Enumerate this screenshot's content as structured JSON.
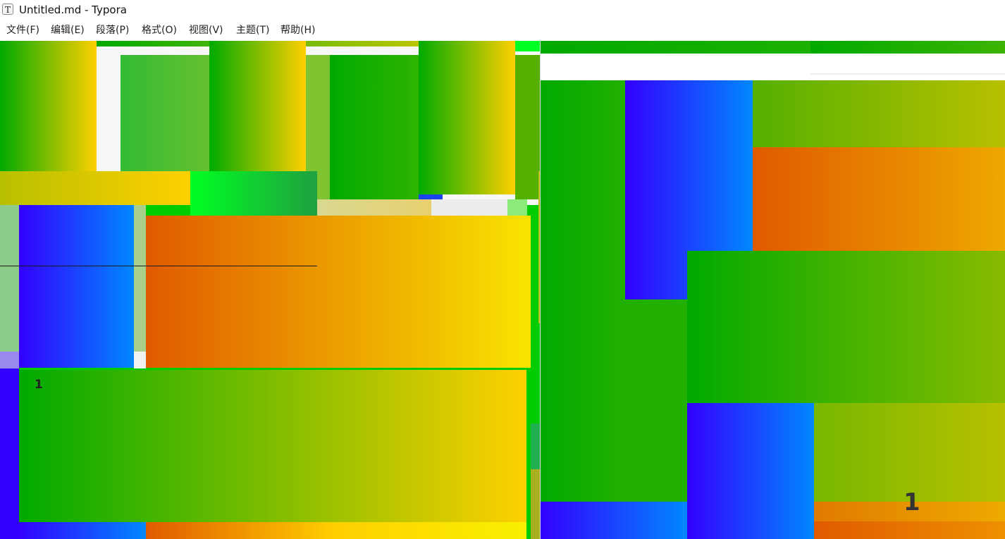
{
  "window": {
    "icon_letter": "T",
    "title": "Untitled.md - Typora"
  },
  "menubar": {
    "items": [
      {
        "label": "文件(F)"
      },
      {
        "label": "编辑(E)"
      },
      {
        "label": "段落(P)"
      },
      {
        "label": "格式(O)"
      },
      {
        "label": "视图(V)"
      },
      {
        "label": "主题(T)"
      },
      {
        "label": "帮助(H)"
      }
    ]
  },
  "content": {
    "left_marker": "1",
    "right_marker": "1"
  },
  "colors": {
    "green": "#00aa00",
    "yellow": "#ffd000",
    "orange": "#e05a00",
    "blue": "#3300ff",
    "sky": "#0088ff",
    "bright_green": "#00ff22"
  }
}
